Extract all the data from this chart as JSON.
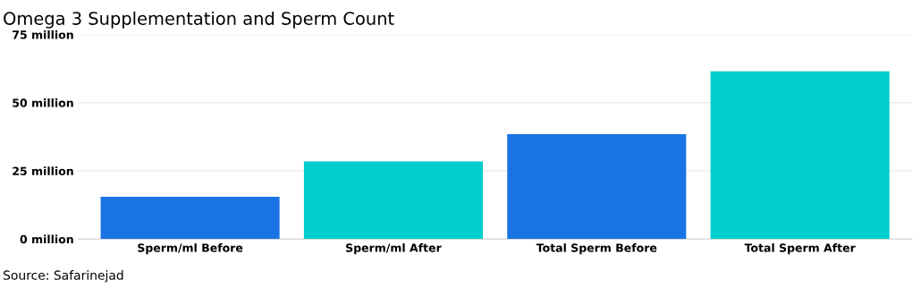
{
  "chart_data": {
    "type": "bar",
    "title": "Omega 3 Supplementation and Sperm Count",
    "categories": [
      "Sperm/ml Before",
      "Sperm/ml After",
      "Total Sperm Before",
      "Total Sperm After"
    ],
    "values": [
      15.5,
      28.5,
      38.5,
      61.5
    ],
    "colors": [
      "#1a73e3",
      "#00cdcd",
      "#1a73e3",
      "#00cdcd"
    ],
    "ylim": [
      0,
      75
    ],
    "yticks": [
      {
        "value": 0,
        "label": "0 million"
      },
      {
        "value": 25,
        "label": "25 million"
      },
      {
        "value": 50,
        "label": "50 million"
      },
      {
        "value": 75,
        "label": "75 million"
      }
    ],
    "grid": "y",
    "annotations": [
      "Source: Safarinejad"
    ]
  }
}
